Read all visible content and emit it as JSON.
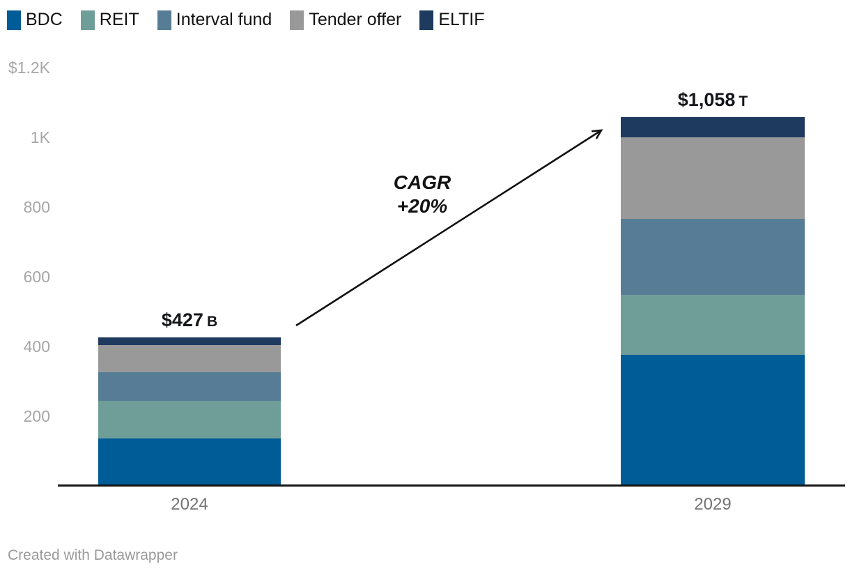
{
  "chart_data": {
    "type": "bar",
    "stacked": true,
    "categories": [
      "2024",
      "2029"
    ],
    "series": [
      {
        "name": "BDC",
        "color": "#005C96",
        "values": [
          136,
          377
        ]
      },
      {
        "name": "REIT",
        "color": "#6F9E99",
        "values": [
          109,
          172
        ]
      },
      {
        "name": "Interval fund",
        "color": "#567D95",
        "values": [
          81,
          218
        ]
      },
      {
        "name": "Tender offer",
        "color": "#999999",
        "values": [
          79,
          234
        ]
      },
      {
        "name": "ELTIF",
        "color": "#1F3A5F",
        "values": [
          22,
          57
        ]
      }
    ],
    "totals": [
      {
        "value": 427,
        "label": "$427",
        "unit": "B"
      },
      {
        "value": 1058,
        "label": "$1,058",
        "unit": "T"
      }
    ],
    "ylim": [
      0,
      1200
    ],
    "yticks": [
      {
        "label": "$1.2K",
        "value": 1200
      },
      {
        "label": "1K",
        "value": 1000
      },
      {
        "label": "800",
        "value": 800
      },
      {
        "label": "600",
        "value": 600
      },
      {
        "label": "400",
        "value": 400
      },
      {
        "label": "200",
        "value": 200
      }
    ],
    "grid": false,
    "legend_position": "top",
    "annotation": {
      "line1": "CAGR",
      "line2": "+20%"
    },
    "arrow_color": "#111111"
  },
  "footer": {
    "text": "Created with Datawrapper"
  }
}
